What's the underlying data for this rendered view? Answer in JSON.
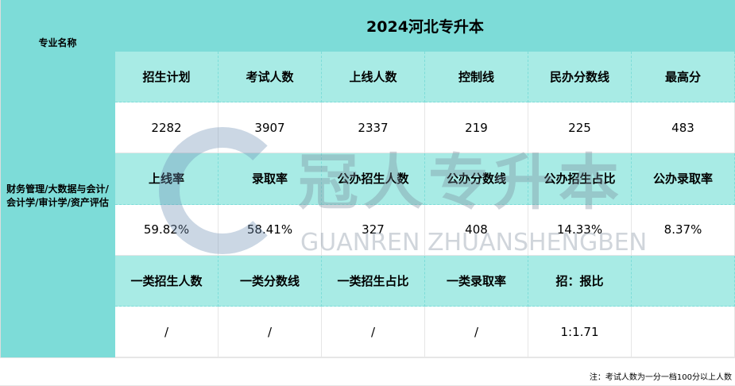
{
  "title": "2024河北专升本",
  "left": {
    "header": "专业名称",
    "major": "财务管理/大数据与会计/会计学/审计学/资产评估"
  },
  "rows": [
    {
      "type": "h",
      "cells": [
        "招生计划",
        "考试人数",
        "上线人数",
        "控制线",
        "民办分数线",
        "最高分"
      ]
    },
    {
      "type": "v",
      "cells": [
        "2282",
        "3907",
        "2337",
        "219",
        "225",
        "483"
      ]
    },
    {
      "type": "h",
      "cells": [
        "上线率",
        "录取率",
        "公办招生人数",
        "公办分数线",
        "公办招生占比",
        "公办录取率"
      ]
    },
    {
      "type": "v",
      "cells": [
        "59.82%",
        "58.41%",
        "327",
        "408",
        "14.33%",
        "8.37%"
      ]
    },
    {
      "type": "h",
      "cells": [
        "一类招生人数",
        "一类分数线",
        "一类招生占比",
        "一类录取率",
        "招：报比",
        ""
      ]
    },
    {
      "type": "v",
      "cells": [
        "/",
        "/",
        "/",
        "/",
        "1:1.71",
        ""
      ]
    }
  ],
  "note": "注：考试人数为一分一档100分以上人数",
  "watermark": {
    "cn": "冠人专升本",
    "en": "GUANREN ZHUANSHENGBEN"
  },
  "colors": {
    "dark": "#7ddcd8",
    "light": "#a8ebe5"
  }
}
